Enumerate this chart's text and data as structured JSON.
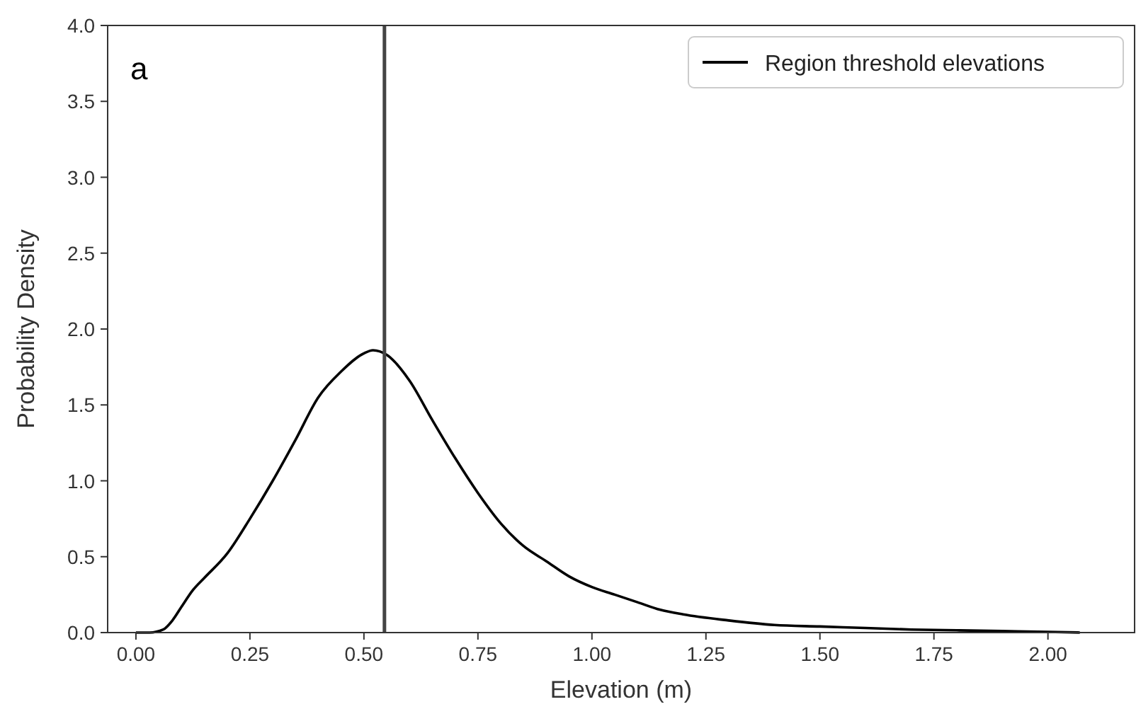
{
  "chart_data": {
    "type": "line",
    "xlabel": "Elevation (m)",
    "ylabel": "Probability Density",
    "annotations": [
      "a"
    ],
    "series": [
      {
        "name": "Region threshold elevations",
        "color": "#000000",
        "x": [
          0.0,
          0.03,
          0.06,
          0.08,
          0.1,
          0.125,
          0.15,
          0.2,
          0.25,
          0.3,
          0.35,
          0.4,
          0.45,
          0.5,
          0.52,
          0.55,
          0.6,
          0.65,
          0.7,
          0.75,
          0.8,
          0.85,
          0.9,
          0.95,
          1.0,
          1.05,
          1.1,
          1.15,
          1.2,
          1.3,
          1.4,
          1.5,
          1.6,
          1.7,
          1.8,
          1.9,
          2.0,
          2.07
        ],
        "values": [
          0.0,
          0.0,
          0.02,
          0.08,
          0.17,
          0.28,
          0.36,
          0.52,
          0.75,
          1.0,
          1.27,
          1.55,
          1.72,
          1.84,
          1.86,
          1.83,
          1.66,
          1.4,
          1.15,
          0.92,
          0.72,
          0.57,
          0.47,
          0.37,
          0.3,
          0.25,
          0.2,
          0.15,
          0.12,
          0.08,
          0.05,
          0.04,
          0.03,
          0.02,
          0.015,
          0.01,
          0.005,
          0.0
        ]
      }
    ],
    "ref_lines": [
      {
        "axis": "x",
        "value": 0.545,
        "color": "#444444"
      }
    ],
    "xlim": [
      -0.062,
      2.19
    ],
    "ylim": [
      0,
      4
    ],
    "xticks": [
      {
        "value": 0,
        "label": "0.00"
      },
      0.25,
      {
        "value": 0.5,
        "label": "0.50"
      },
      0.75,
      {
        "value": 1,
        "label": "1.00"
      },
      1.25,
      {
        "value": 1.5,
        "label": "1.50"
      },
      1.75,
      {
        "value": 2,
        "label": "2.00"
      }
    ],
    "yticks": [
      {
        "value": 0,
        "label": "0.0"
      },
      0.5,
      {
        "value": 1,
        "label": "1.0"
      },
      1.5,
      {
        "value": 2,
        "label": "2.0"
      },
      2.5,
      {
        "value": 3,
        "label": "3.0"
      },
      3.5,
      {
        "value": 4,
        "label": "4.0"
      }
    ],
    "grid": false,
    "legend": "top right",
    "line_style": "solid",
    "marker": "none"
  }
}
